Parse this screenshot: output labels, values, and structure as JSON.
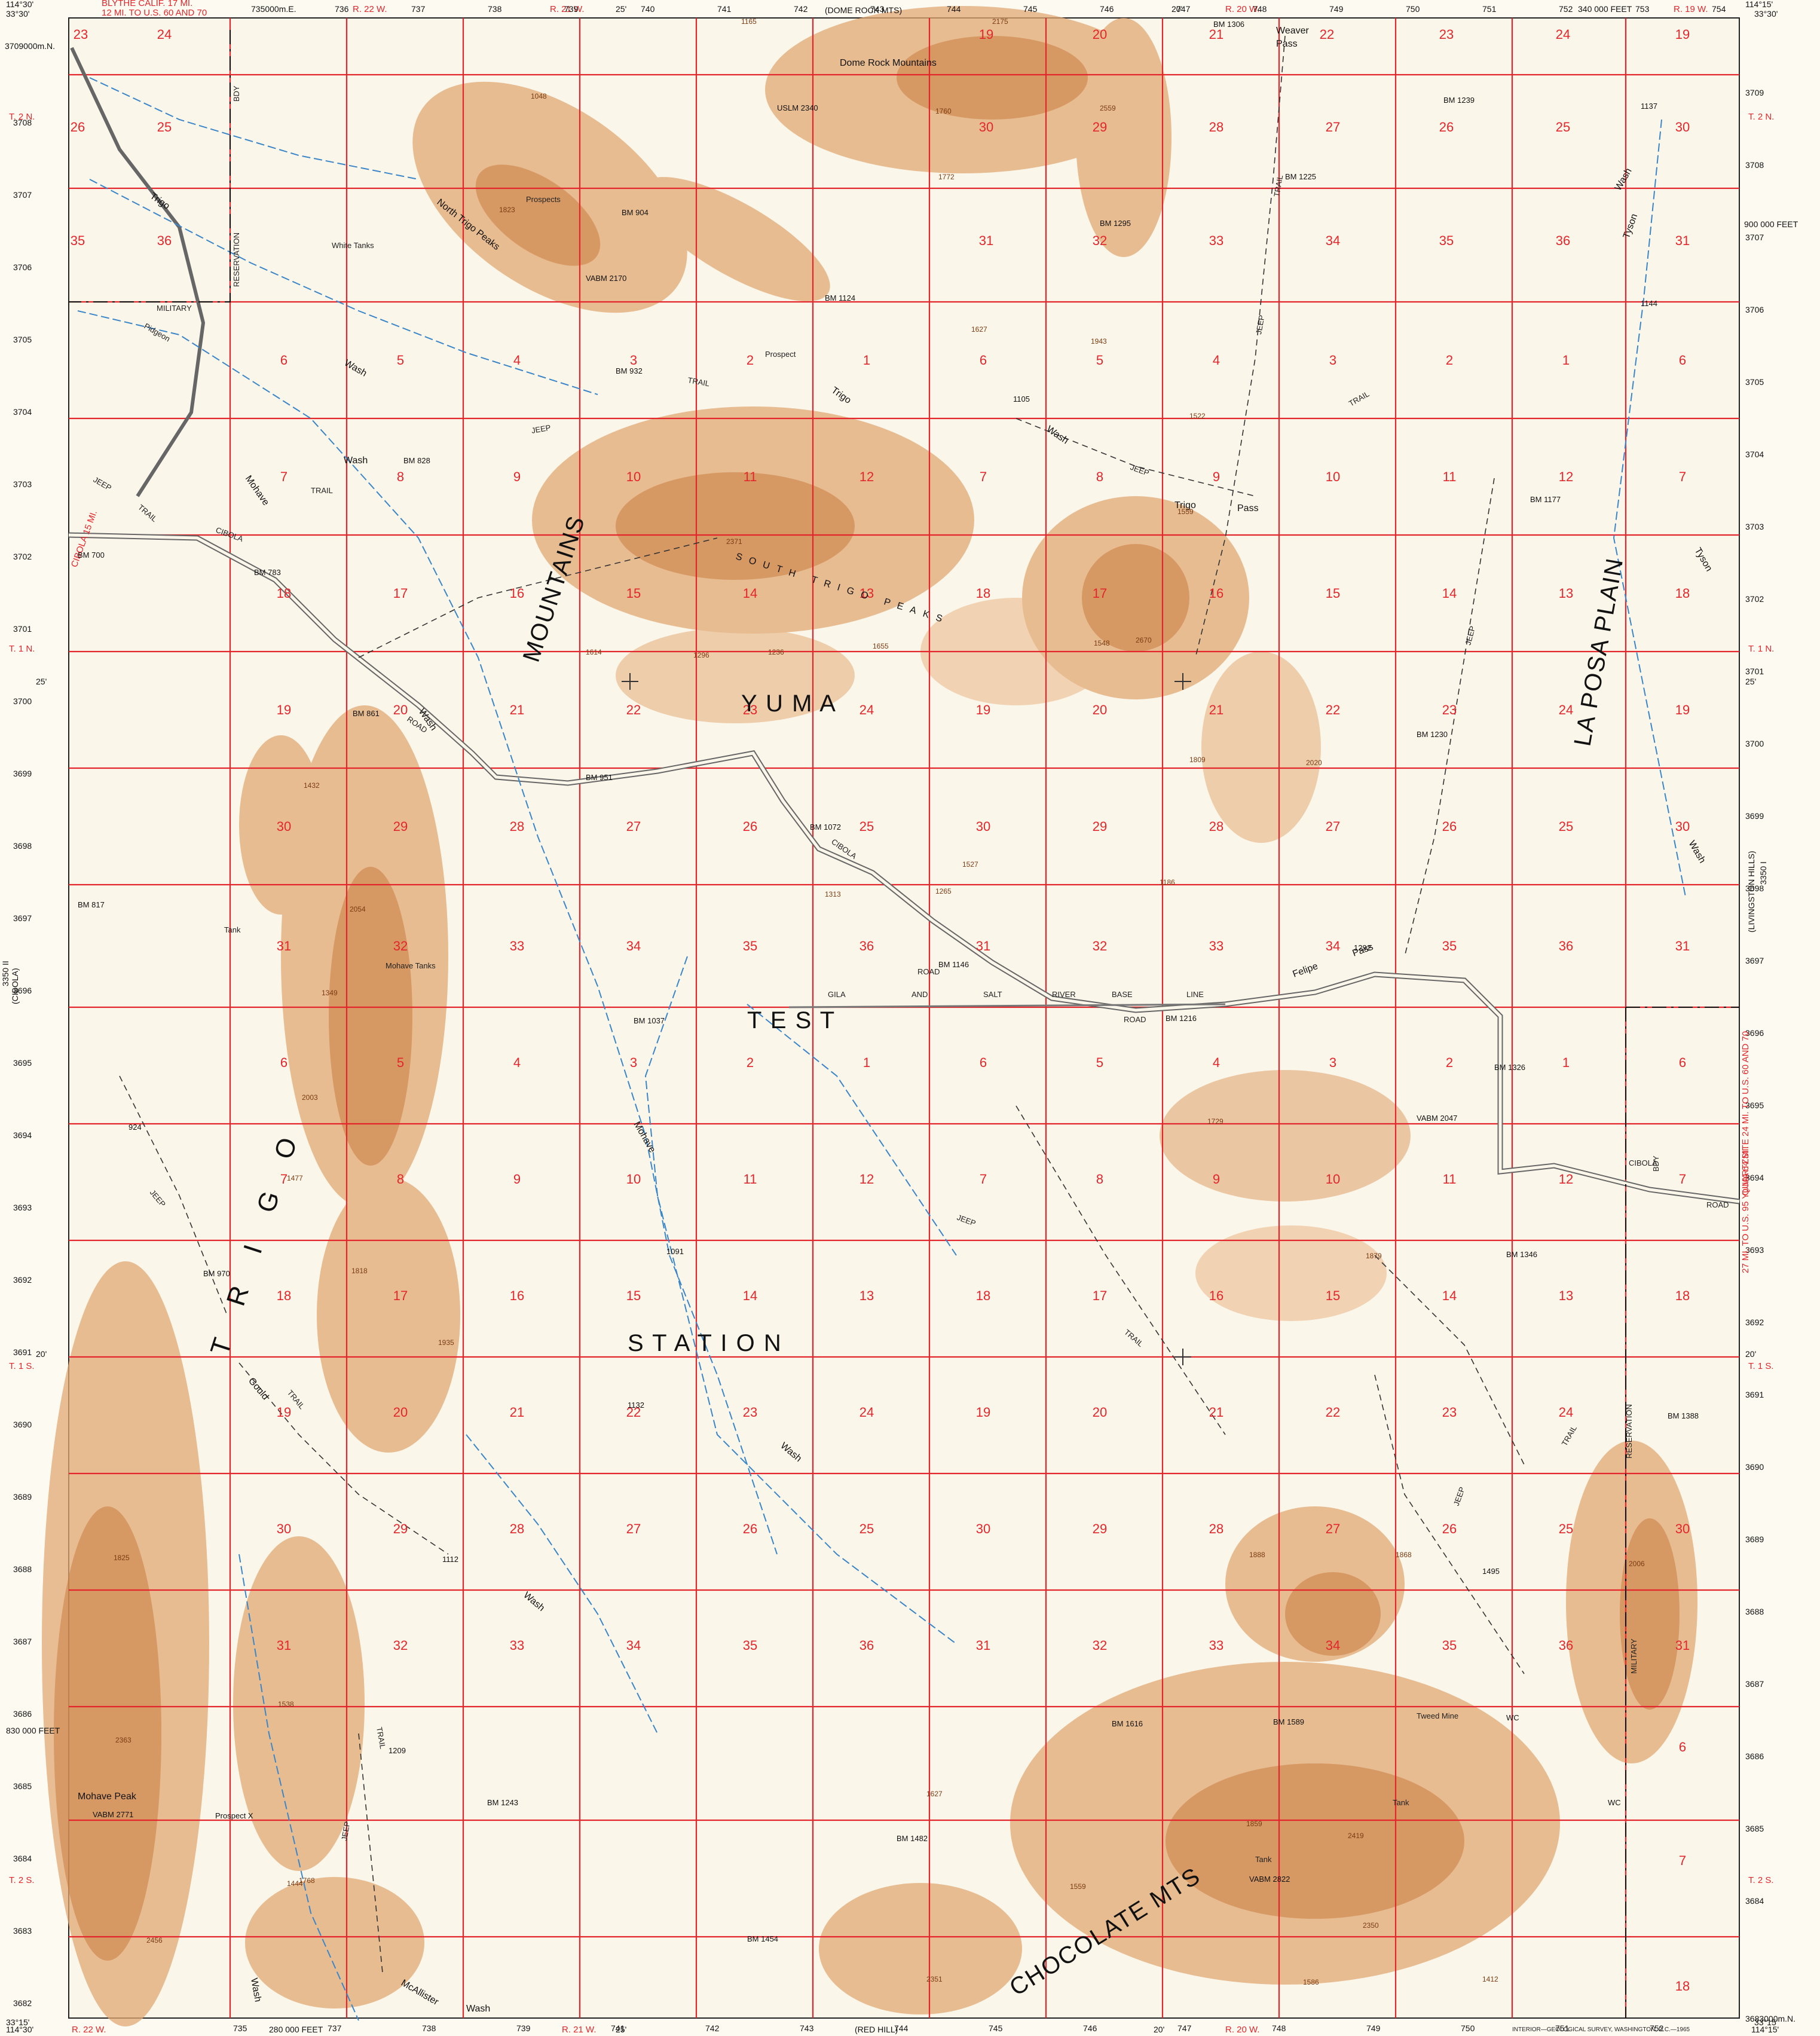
{
  "corners": {
    "top_left": "114°30'",
    "top_right": "114°15'",
    "bottom_left": "114°30'",
    "bottom_right": "114°15'",
    "lat_top": "33°30'",
    "lat_bottom": "33°15'"
  },
  "top_margin": {
    "adjoining": "(DOME ROCK MTS)",
    "blythe": "BLYTHE CALIF. 17 MI.",
    "route": "12 MI. TO U.S. 60 AND 70",
    "range_r22": "R. 22 W.",
    "range_r21": "R. 21 W.",
    "range_r20": "R. 20 W.",
    "range_r19": "R. 19 W.",
    "min_25": "25'",
    "min_20": "20'",
    "easting_feet": "340 000 FEET",
    "utm_top_start": "735000m.E.",
    "utm_top": [
      "736",
      "737",
      "738",
      "739",
      "740",
      "741",
      "742",
      "743",
      "744",
      "745",
      "746",
      "747",
      "748",
      "749",
      "750",
      "751",
      "752",
      "753",
      "754"
    ]
  },
  "bottom_margin": {
    "adjoining": "(RED HILL)",
    "range_r22": "R. 22 W.",
    "range_r21": "R. 21 W.",
    "range_r20": "R. 20 W.",
    "easting_feet": "280 000 FEET",
    "min_25": "25'",
    "min_20": "20'",
    "credit": "INTERIOR—GEOLOGICAL SURVEY, WASHINGTON, D.C.—1965",
    "utm_bottom": [
      "735",
      "737",
      "738",
      "739",
      "741",
      "742",
      "743",
      "744",
      "745",
      "746",
      "747",
      "748",
      "749",
      "750",
      "751",
      "752"
    ]
  },
  "left_margin": {
    "utm_first": "3709000m.N.",
    "utm": [
      "3708",
      "3707",
      "3706",
      "3705",
      "3704",
      "3703",
      "3702",
      "3701",
      "3700",
      "3699",
      "3698",
      "3697",
      "3696",
      "3695",
      "3694",
      "3693",
      "3692",
      "3691",
      "3690",
      "3689",
      "3688",
      "3687",
      "3686",
      "3685",
      "3684",
      "3683",
      "3682"
    ],
    "townships": [
      "T. 2 N.",
      "T. 1 N.",
      "T. 1 S.",
      "T. 2 S."
    ],
    "min_25": "25'",
    "min_20": "20'",
    "northing_feet": "830 000 FEET",
    "quad_side": "(CIBOLA)",
    "quad_side_id": "3350 II",
    "cibola_arrow": "CIBOLA 15 MI."
  },
  "right_margin": {
    "utm": [
      "3709",
      "3708",
      "3707",
      "3706",
      "3705",
      "3704",
      "3703",
      "3702",
      "3701",
      "3700",
      "3699",
      "3698",
      "3697",
      "3696",
      "3695",
      "3694",
      "3693",
      "3692",
      "3691",
      "3690",
      "3689",
      "3688",
      "3687",
      "3686",
      "3685",
      "3684"
    ],
    "utm_last": "3683000m.N.",
    "townships": [
      "T. 2 N.",
      "T. 1 N.",
      "T. 1 S.",
      "T. 2 S."
    ],
    "min_25": "25'",
    "min_20": "20'",
    "northing_feet": "900 000 FEET",
    "quad_side": "(LIVINGSTON HILLS)",
    "quad_side_id": "3350 I",
    "quartzsite": "QUARTZSITE 24 MI. TO U.S. 60 AND 70",
    "yuma_note": "27 MI. TO U.S. 95 YUMA 64 MI."
  },
  "sections": {
    "row1": [
      "24",
      "19",
      "20",
      "21",
      "22",
      "23",
      "24",
      "19",
      "23",
      "24",
      "19"
    ],
    "row2": [
      "26",
      "25",
      "30",
      "29",
      "28",
      "27",
      "26",
      "25",
      "30"
    ],
    "row3": [
      "35",
      "36",
      "31",
      "32",
      "33",
      "34",
      "35",
      "36",
      "31"
    ],
    "row4": [
      "6",
      "5",
      "4",
      "3",
      "2",
      "1",
      "6",
      "5",
      "4",
      "3",
      "2",
      "1",
      "6"
    ],
    "row5": [
      "7",
      "8",
      "9",
      "10",
      "11",
      "12",
      "7",
      "8",
      "9",
      "10",
      "11",
      "12",
      "7"
    ],
    "row6": [
      "18",
      "17",
      "16",
      "15",
      "14",
      "13",
      "18",
      "17",
      "16",
      "15",
      "14",
      "13",
      "18"
    ],
    "row7": [
      "19",
      "20",
      "21",
      "22",
      "23",
      "24",
      "19",
      "20",
      "21",
      "22",
      "23",
      "24",
      "19"
    ],
    "row8": [
      "30",
      "29",
      "28",
      "27",
      "26",
      "25",
      "30",
      "29",
      "28",
      "27",
      "26",
      "25",
      "30"
    ],
    "row9": [
      "31",
      "32",
      "33",
      "34",
      "35",
      "36",
      "31",
      "32",
      "33",
      "34",
      "35",
      "36",
      "31"
    ],
    "row10": [
      "6",
      "5",
      "4",
      "3",
      "2",
      "1",
      "6",
      "5",
      "4",
      "3",
      "2",
      "1",
      "6"
    ],
    "row11": [
      "7",
      "8",
      "9",
      "10",
      "11",
      "12",
      "7",
      "8",
      "9",
      "10",
      "11",
      "12",
      "7"
    ],
    "row12": [
      "18",
      "17",
      "16",
      "15",
      "14",
      "13",
      "18",
      "17",
      "16",
      "15",
      "14",
      "13",
      "18"
    ],
    "row13": [
      "19",
      "20",
      "21",
      "22",
      "23",
      "24",
      "19",
      "20",
      "21",
      "22",
      "23",
      "24"
    ],
    "row14": [
      "30",
      "29",
      "28",
      "27",
      "26",
      "25",
      "30",
      "29",
      "28",
      "27",
      "26",
      "25",
      "30"
    ],
    "row15": [
      "31",
      "32",
      "33",
      "34",
      "35",
      "36",
      "31",
      "32",
      "33",
      "34",
      "35",
      "36",
      "31"
    ],
    "row16": [
      "6",
      "7",
      "18"
    ]
  },
  "places": {
    "dome_rock": "Dome Rock Mountains",
    "weaver_pass": "Weaver",
    "weaver_pass2": "Pass",
    "north_trigo": "North Trigo Peaks",
    "white_tanks": "White Tanks",
    "prospects": "Prospects",
    "prospect": "Prospect",
    "south_trigo": "SOUTH TRIGO PEAKS",
    "yuma": "Y U M A",
    "test": "T E S T",
    "station": "S T A T I O N",
    "mountains": "MOUNTAINS",
    "trigo_big": "TRIGO",
    "la_posa": "LA POSA PLAIN",
    "trigo_pass": "Trigo",
    "trigo_pass2": "Pass",
    "felipe_pass": "Felipe",
    "felipe_pass2": "Pass",
    "mohave_tanks": "Mohave Tanks",
    "tank": "Tank",
    "mohave_peak": "Mohave Peak",
    "chocolate": "CHOCOLATE MTS",
    "tweed_mine": "Tweed Mine",
    "baseline": [
      "GILA",
      "AND",
      "SALT",
      "RIVER",
      "BASE",
      "LINE"
    ],
    "military": "MILITARY",
    "reservation": "RESERVATION",
    "bdy": "BDY"
  },
  "washes": {
    "trigo_wash": "Trigo",
    "trigo_wash2": "Wash",
    "pidgeon_wash": "Pidgeon",
    "mohave_wash": "Mohave",
    "wash": "Wash",
    "tyson_wash": "Tyson",
    "gould_wash": "Gould",
    "mcallister": "McAllister",
    "cibola_road": "CIBOLA",
    "road": "ROAD",
    "jeep": "JEEP",
    "trail": "TRAIL"
  },
  "benchmarks": {
    "bm1306": "BM 1306",
    "bm1239": "BM 1239",
    "bm1137": "1137",
    "bm1225": "BM 1225",
    "bm1295": "BM 1295",
    "bm904": "BM 904",
    "bm1124": "BM 1124",
    "bm932": "BM 932",
    "bm1105": "1105",
    "bm828": "BM 828",
    "bm700": "BM 700",
    "bm783": "BM 783",
    "bm861": "BM 861",
    "bm951": "BM 951",
    "bm1072": "BM 1072",
    "bm817": "BM 817",
    "bm1146": "BM 1146",
    "bm1037": "BM 1037",
    "bm1216": "BM 1216",
    "bm1292": "1292",
    "bm1326": "BM 1326",
    "bm1177": "BM 1177",
    "bm1230": "BM 1230",
    "bm1144": "1144",
    "bm924": "924",
    "bm970": "BM 970",
    "bm1091": "1091",
    "bm1346": "BM 1346",
    "bm1132": "1132",
    "bm1388": "BM 1388",
    "bm1112": "1112",
    "bm1495": "1495",
    "bm1616": "BM 1616",
    "bm1589": "BM 1589",
    "bm1209": "1209",
    "bm1243": "BM 1243",
    "bm1482": "BM 1482",
    "bm1454": "BM 1454",
    "uslm": "USLM 2340",
    "vabm2170": "VABM 2170",
    "vabm2047": "VABM 2047",
    "vabm2771": "VABM 2771",
    "vabm2822": "VABM 2822",
    "prospect_x": "Prospect X",
    "wc": "WC"
  },
  "spot_heights": [
    "1165",
    "2175",
    "1760",
    "2559",
    "1772",
    "1048",
    "1823",
    "1627",
    "1943",
    "1522",
    "1559",
    "2371",
    "2670",
    "1548",
    "1296",
    "1236",
    "1614",
    "1432",
    "2054",
    "1349",
    "2003",
    "1477",
    "1818",
    "1935",
    "1825",
    "2363",
    "2456",
    "1768",
    "2351",
    "1888",
    "1868",
    "1879",
    "1729",
    "2006",
    "2419",
    "1859",
    "2350",
    "1559",
    "1527",
    "1265",
    "1186",
    "1313",
    "1655",
    "1809",
    "2020",
    "1586",
    "1412",
    "1627",
    "1444",
    "1538"
  ]
}
